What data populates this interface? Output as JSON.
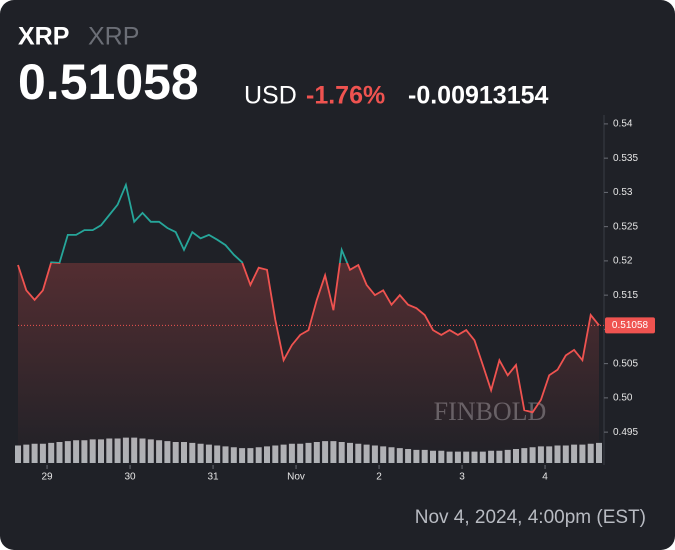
{
  "chart_data": {
    "type": "line",
    "symbol": "XRP",
    "symbol_secondary": "XRP",
    "last_price": 0.51058,
    "currency": "USD",
    "change_percent": "-1.76%",
    "change": "-0.00913154",
    "timestamp": "Nov 4, 2024, 4:00pm (EST)",
    "watermark": "FINBOLD",
    "baseline": 0.5197,
    "up_color": "#26a69a",
    "down_color": "#ef5350",
    "values": [
      0.5194,
      0.5157,
      0.5143,
      0.5157,
      0.5198,
      0.5197,
      0.5238,
      0.5238,
      0.5245,
      0.5245,
      0.5252,
      0.5267,
      0.5282,
      0.5311,
      0.5257,
      0.527,
      0.5257,
      0.5257,
      0.5248,
      0.5242,
      0.5216,
      0.5242,
      0.5233,
      0.5238,
      0.5231,
      0.5223,
      0.5209,
      0.5198,
      0.5165,
      0.519,
      0.5187,
      0.5114,
      0.5055,
      0.5077,
      0.5092,
      0.5099,
      0.5143,
      0.5179,
      0.5128,
      0.5216,
      0.5187,
      0.5194,
      0.5165,
      0.515,
      0.5157,
      0.5136,
      0.515,
      0.5136,
      0.5131,
      0.5121,
      0.5099,
      0.5092,
      0.5099,
      0.5092,
      0.5099,
      0.5084,
      0.5048,
      0.5011,
      0.5055,
      0.5033,
      0.5048,
      0.4982,
      0.4979,
      0.4997,
      0.5033,
      0.5041,
      0.5062,
      0.507,
      0.5055,
      0.5121,
      0.5106
    ],
    "volume": [
      20,
      21,
      22,
      22,
      23,
      24,
      25,
      26,
      26,
      27,
      27,
      28,
      28,
      29,
      29,
      28,
      27,
      26,
      25,
      24,
      24,
      23,
      22,
      21,
      20,
      19,
      18,
      17,
      17,
      18,
      19,
      20,
      21,
      22,
      22,
      23,
      24,
      25,
      25,
      24,
      23,
      22,
      21,
      20,
      19,
      18,
      17,
      16,
      15,
      15,
      14,
      14,
      13,
      13,
      13,
      13,
      13,
      14,
      14,
      15,
      16,
      17,
      18,
      19,
      19,
      20,
      20,
      21,
      21,
      22,
      23
    ],
    "volume_lim": [
      0,
      40
    ],
    "xlim": [
      0,
      70
    ],
    "xticks": [
      {
        "value": 3.5,
        "label": "29"
      },
      {
        "value": 13.5,
        "label": "30"
      },
      {
        "value": 23.5,
        "label": "31"
      },
      {
        "value": 33.5,
        "label": "Nov"
      },
      {
        "value": 43.5,
        "label": "2"
      },
      {
        "value": 53.5,
        "label": "3"
      },
      {
        "value": 63.5,
        "label": "4"
      }
    ],
    "ylim": [
      0.4902,
      0.5413
    ],
    "yticks": [
      0.495,
      {
        "value": 0.5,
        "label": "0.50"
      },
      0.505,
      0.51,
      0.515,
      0.52,
      0.525,
      0.53,
      0.535,
      0.54
    ]
  }
}
